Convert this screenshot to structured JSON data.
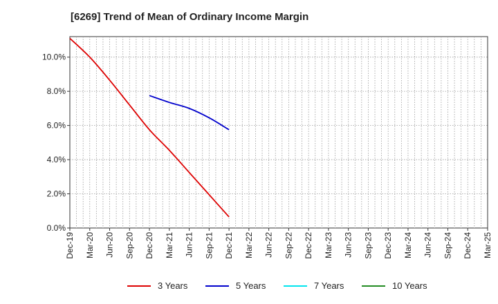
{
  "chart_data": {
    "type": "line",
    "title": "[6269]  Trend of Mean of Ordinary Income Margin",
    "xlabel": "",
    "ylabel": "",
    "ylim": [
      0,
      11.2
    ],
    "yticks": [
      "0.0%",
      "2.0%",
      "4.0%",
      "6.0%",
      "8.0%",
      "10.0%"
    ],
    "ytick_values": [
      0,
      2,
      4,
      6,
      8,
      10
    ],
    "xticks": [
      "Dec-19",
      "Mar-20",
      "Jun-20",
      "Sep-20",
      "Dec-20",
      "Mar-21",
      "Jun-21",
      "Sep-21",
      "Dec-21",
      "Mar-22",
      "Jun-22",
      "Sep-22",
      "Dec-22",
      "Mar-23",
      "Jun-23",
      "Sep-23",
      "Dec-23",
      "Mar-24",
      "Jun-24",
      "Sep-24",
      "Dec-24",
      "Mar-25"
    ],
    "grid": true,
    "legend_position": "bottom",
    "series": [
      {
        "name": "3 Years",
        "color": "#dd0000",
        "points": [
          {
            "x": "Dec-19",
            "y": 11.1
          },
          {
            "x": "Mar-20",
            "y": 10.0
          },
          {
            "x": "Jun-20",
            "y": 8.65
          },
          {
            "x": "Sep-20",
            "y": 7.2
          },
          {
            "x": "Dec-20",
            "y": 5.75
          },
          {
            "x": "Mar-21",
            "y": 4.55
          },
          {
            "x": "Jun-21",
            "y": 3.25
          },
          {
            "x": "Sep-21",
            "y": 1.95
          },
          {
            "x": "Dec-21",
            "y": 0.65
          }
        ]
      },
      {
        "name": "5 Years",
        "color": "#0000cc",
        "points": [
          {
            "x": "Dec-20",
            "y": 7.75
          },
          {
            "x": "Mar-21",
            "y": 7.35
          },
          {
            "x": "Jun-21",
            "y": 7.0
          },
          {
            "x": "Sep-21",
            "y": 6.45
          },
          {
            "x": "Dec-21",
            "y": 5.75
          }
        ]
      },
      {
        "name": "7 Years",
        "color": "#00e5ee",
        "points": []
      },
      {
        "name": "10 Years",
        "color": "#228b22",
        "points": []
      }
    ]
  }
}
